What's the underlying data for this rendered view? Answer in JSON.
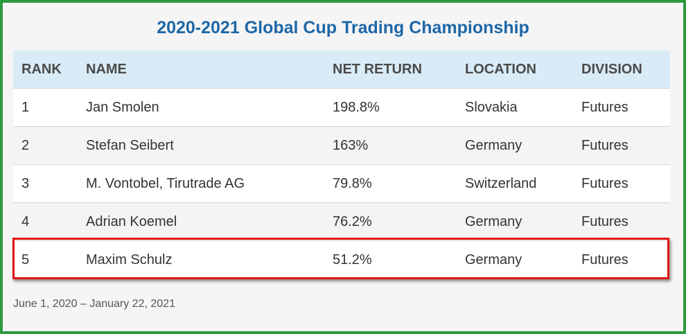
{
  "title": "2020-2021 Global Cup Trading Championship",
  "table": {
    "columns": [
      "RANK",
      "NAME",
      "NET RETURN",
      "LOCATION",
      "DIVISION"
    ],
    "rows": [
      {
        "rank": "1",
        "name": "Jan Smolen",
        "net_return": "198.8%",
        "location": "Slovakia",
        "division": "Futures"
      },
      {
        "rank": "2",
        "name": "Stefan Seibert",
        "net_return": "163%",
        "location": "Germany",
        "division": "Futures"
      },
      {
        "rank": "3",
        "name": "M. Vontobel, Tirutrade AG",
        "net_return": "79.8%",
        "location": "Switzerland",
        "division": "Futures"
      },
      {
        "rank": "4",
        "name": "Adrian Koemel",
        "net_return": "76.2%",
        "location": "Germany",
        "division": "Futures"
      },
      {
        "rank": "5",
        "name": "Maxim Schulz",
        "net_return": "51.2%",
        "location": "Germany",
        "division": "Futures"
      }
    ],
    "highlighted_row_rank": "5"
  },
  "footnote": "June 1, 2020 – January 22, 2021",
  "colors": {
    "title": "#1e67a7",
    "frame_border": "#2e9a3e",
    "header_background": "#d9ebf6",
    "highlight_border": "#e31414"
  }
}
